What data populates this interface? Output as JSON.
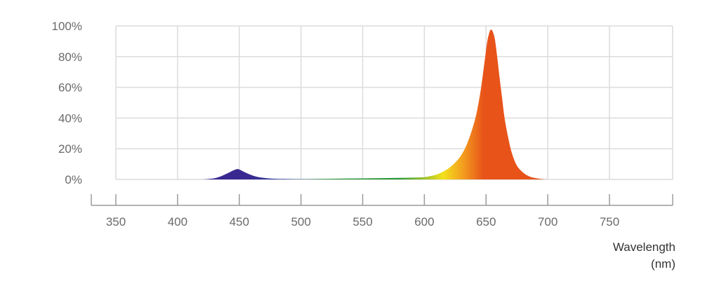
{
  "chart_data": {
    "type": "area",
    "title": "",
    "xlabel": "Wavelength",
    "xlabel_unit": "(nm)",
    "ylabel": "",
    "x_ticks": [
      350,
      400,
      450,
      500,
      550,
      600,
      650,
      700,
      750
    ],
    "y_ticks": [
      "0%",
      "20%",
      "40%",
      "60%",
      "80%",
      "100%"
    ],
    "xlim": [
      340,
      790
    ],
    "ylim": [
      0,
      100
    ],
    "grid": true,
    "legend": "none",
    "series": [
      {
        "x": [
          420,
          425,
          430,
          435,
          440,
          445,
          448,
          450,
          455,
          460,
          465,
          470,
          475,
          480,
          490,
          500,
          510,
          520,
          530,
          540,
          550,
          560,
          570,
          580,
          590,
          600,
          605,
          610,
          615,
          620,
          625,
          630,
          635,
          640,
          643,
          646,
          649,
          651,
          653,
          654,
          655,
          657,
          659,
          661,
          663,
          665,
          668,
          671,
          675,
          680,
          685,
          690,
          695,
          700
        ],
        "y": [
          0,
          0.3,
          0.8,
          2,
          3.8,
          5.8,
          6.7,
          6.5,
          4.5,
          2.8,
          1.6,
          1,
          0.6,
          0.4,
          0.3,
          0.2,
          0.3,
          0.4,
          0.5,
          0.6,
          0.7,
          0.8,
          0.9,
          1,
          1.2,
          1.5,
          2.2,
          3.2,
          5,
          7.5,
          11,
          16,
          24,
          36,
          46,
          60,
          78,
          90,
          96.5,
          97.5,
          97,
          92,
          80,
          66,
          53,
          40,
          27,
          17,
          9,
          4.5,
          2,
          0.9,
          0.3,
          0
        ]
      }
    ],
    "colors": {
      "gridline": "#dcdcdc",
      "axis": "#9a9a9a",
      "violet": "#3a2891",
      "blue": "#283e9a",
      "green": "#2a9a3a",
      "yellow": "#f3e11c",
      "orange": "#f39a1e",
      "red_orange": "#e8531a"
    }
  }
}
